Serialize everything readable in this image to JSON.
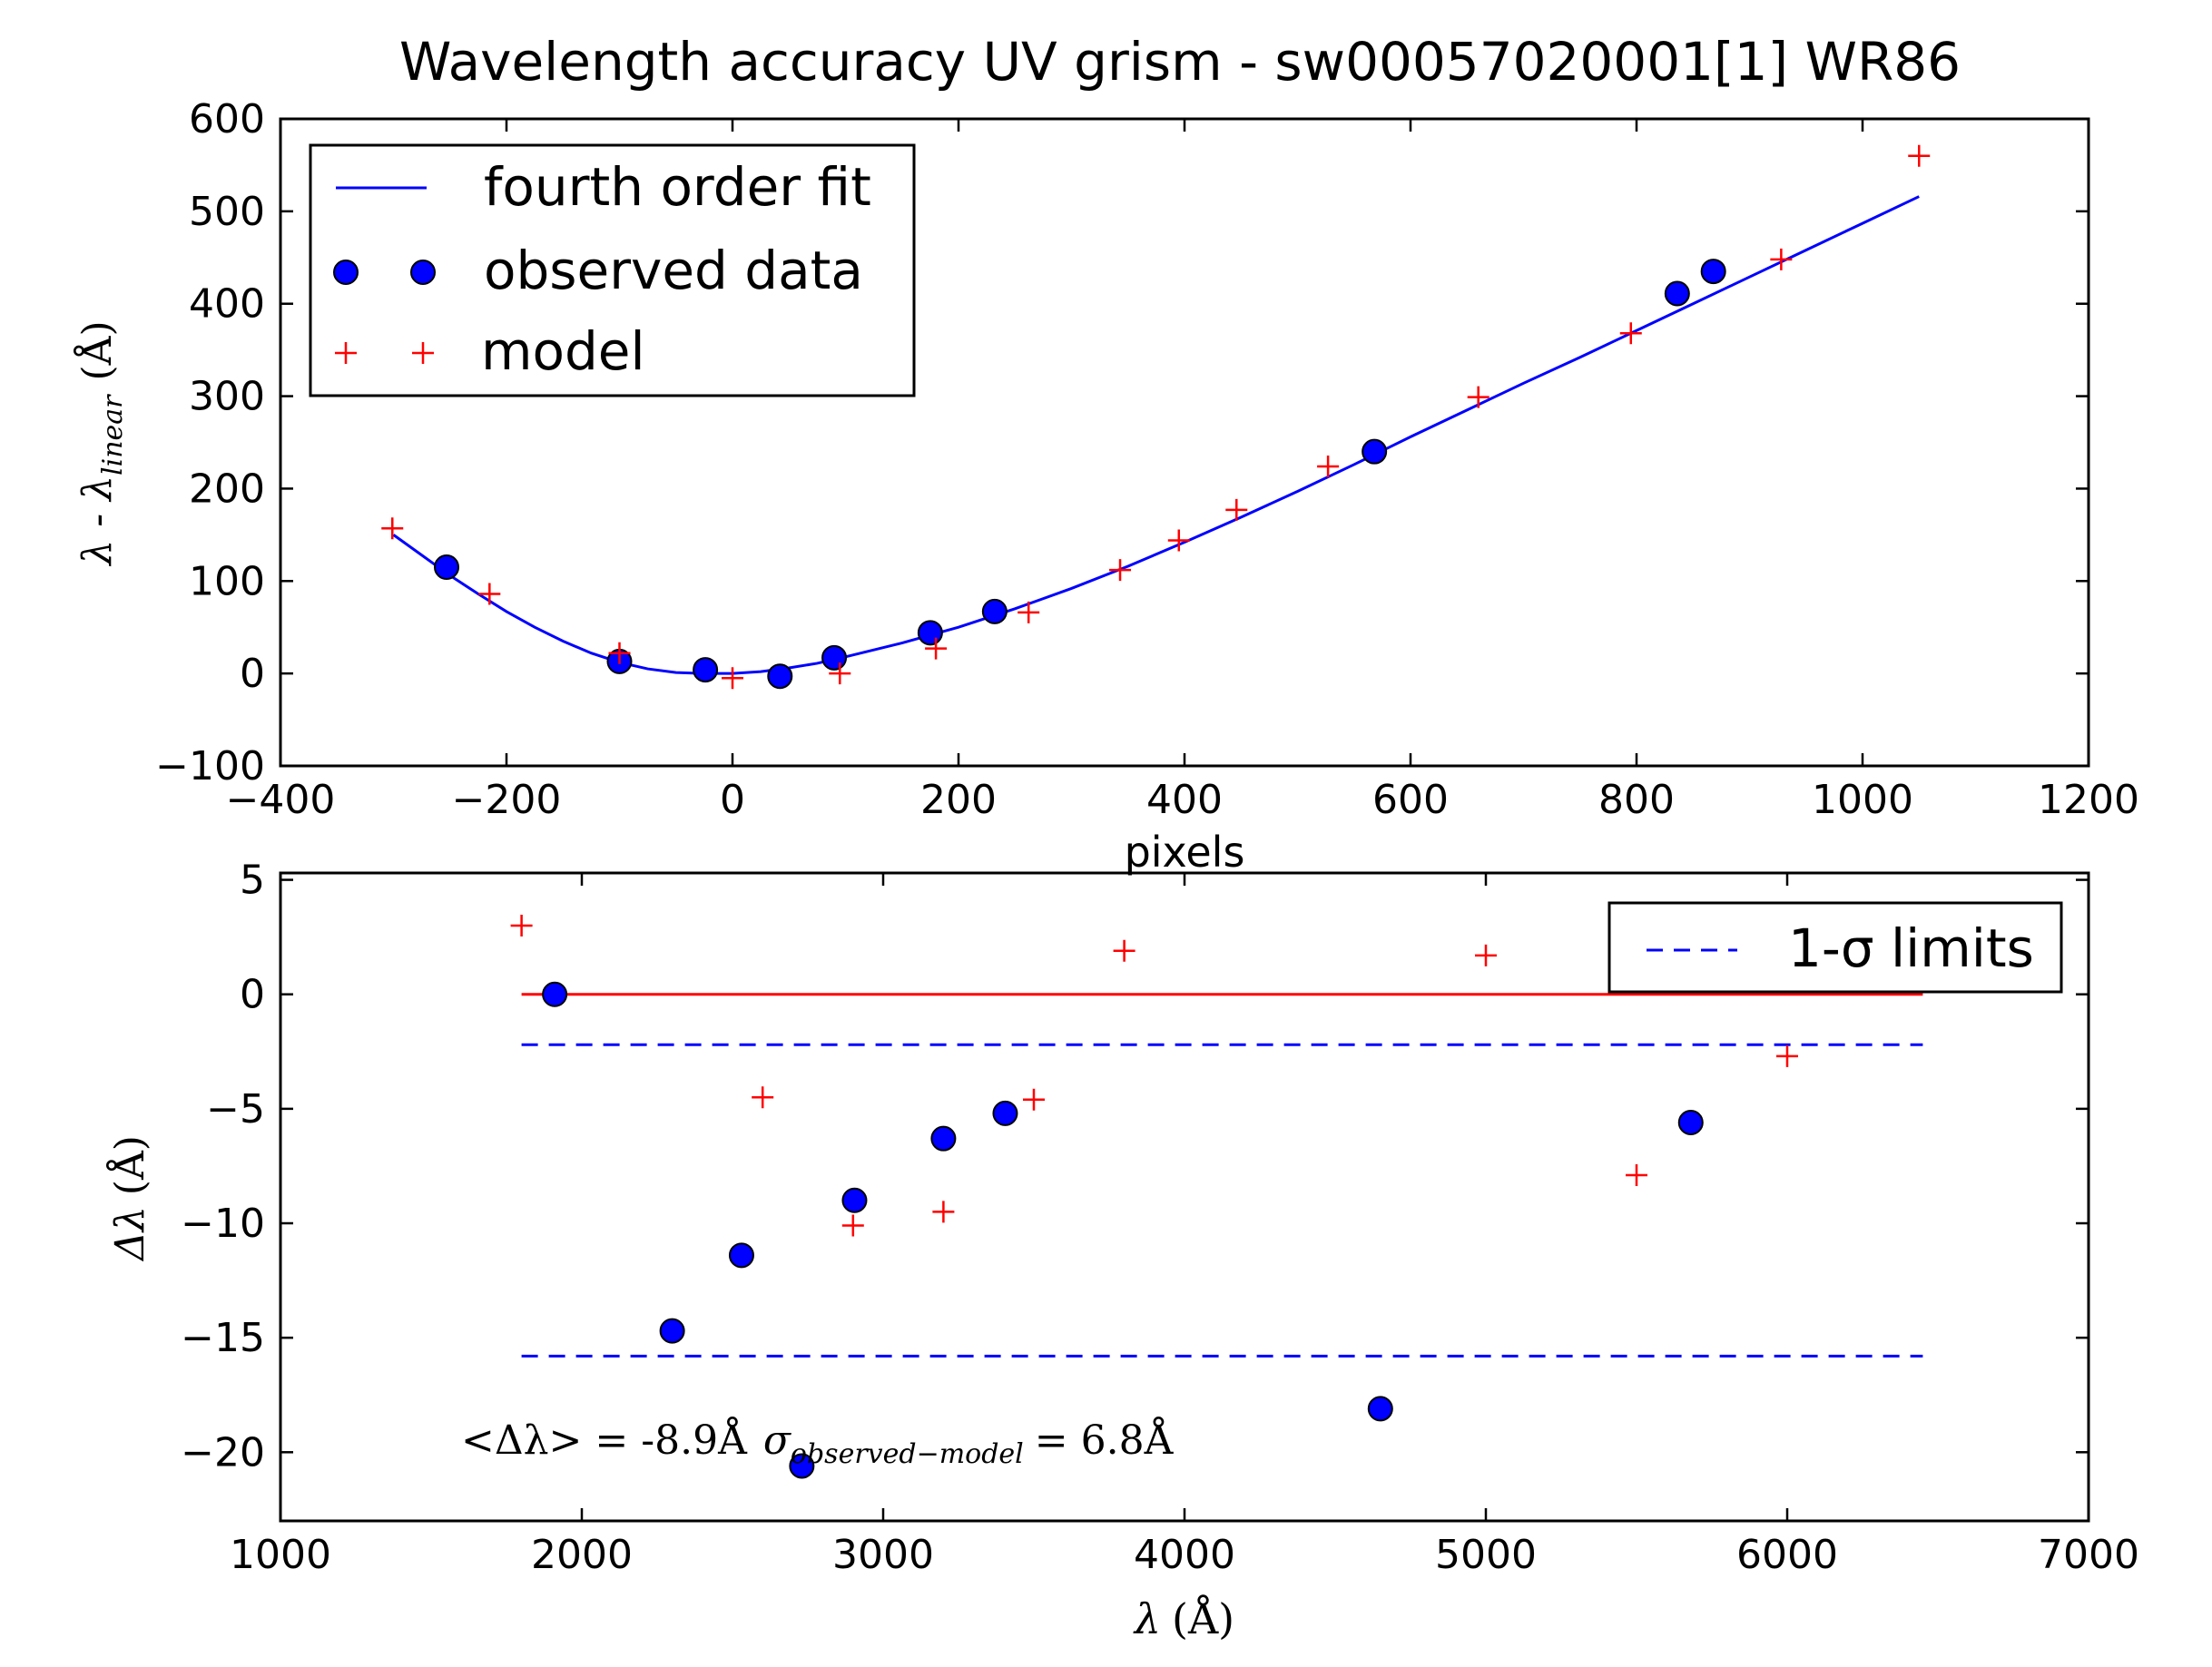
{
  "figure": {
    "title": "Wavelength accuracy UV grism - sw00057020001[1] WR86"
  },
  "chart_data": [
    {
      "type": "scatter",
      "title": "Wavelength accuracy UV grism - sw00057020001[1] WR86",
      "xlabel": "pixels",
      "ylabel_parts": {
        "base": "λ - λ",
        "sub": "linear",
        "unit": "(Å)"
      },
      "xlim": [
        -400,
        1200
      ],
      "ylim": [
        -100,
        600
      ],
      "xticks": [
        -400,
        -200,
        0,
        200,
        400,
        600,
        800,
        1000,
        1200
      ],
      "yticks": [
        -100,
        0,
        100,
        200,
        300,
        400,
        500,
        600
      ],
      "xtick_labels": [
        "−400",
        "−200",
        "0",
        "200",
        "400",
        "600",
        "800",
        "1000",
        "1200"
      ],
      "ytick_labels": [
        "−100",
        "0",
        "100",
        "200",
        "300",
        "400",
        "500",
        "600"
      ],
      "grid": false,
      "legend_position": "top-left",
      "series": [
        {
          "name": "fourth order fit",
          "kind": "line",
          "color": "#0000ff",
          "x": [
            -300,
            -275,
            -250,
            -225,
            -200,
            -175,
            -150,
            -125,
            -100,
            -75,
            -50,
            -25,
            0,
            25,
            50,
            75,
            100,
            150,
            200,
            250,
            300,
            350,
            400,
            450,
            500,
            550,
            600,
            650,
            700,
            750,
            800,
            850,
            900,
            950,
            1000,
            1050
          ],
          "y": [
            150,
            128,
            106,
            86,
            67,
            50,
            35,
            22,
            12,
            5,
            1,
            0,
            0,
            2,
            6,
            11,
            18,
            33,
            50,
            70,
            92,
            116,
            142,
            169,
            197,
            226,
            256,
            285,
            314,
            342,
            371,
            400,
            429,
            458,
            487,
            516
          ]
        },
        {
          "name": "observed data",
          "kind": "marker-circle",
          "color": "#0000ff",
          "x": [
            -253,
            -100,
            -24,
            42,
            90,
            175,
            232,
            568,
            836,
            868
          ],
          "y": [
            115,
            13,
            4,
            -3,
            17,
            44,
            67,
            240,
            411,
            435
          ]
        },
        {
          "name": "model",
          "kind": "marker-plus",
          "color": "#ff0000",
          "x": [
            -301,
            -215,
            -100,
            0,
            95,
            180,
            262,
            343,
            395,
            446,
            527,
            660,
            795,
            928,
            1050
          ],
          "y": [
            157,
            86,
            22,
            -5,
            0,
            27,
            66,
            112,
            144,
            177,
            224,
            299,
            368,
            448,
            560
          ]
        }
      ]
    },
    {
      "type": "scatter",
      "xlabel_parts": {
        "base": "λ",
        "unit": "(Å)"
      },
      "ylabel_parts": {
        "base": "Δλ",
        "unit": "(Å)"
      },
      "xlim": [
        1000,
        7000
      ],
      "ylim": [
        -23,
        5.3
      ],
      "xticks": [
        1000,
        2000,
        3000,
        4000,
        5000,
        6000,
        7000
      ],
      "yticks": [
        -20,
        -15,
        -10,
        -5,
        0,
        5
      ],
      "xtick_labels": [
        "1000",
        "2000",
        "3000",
        "4000",
        "5000",
        "6000",
        "7000"
      ],
      "ytick_labels": [
        "−20",
        "−15",
        "−10",
        "−5",
        "0",
        "5"
      ],
      "grid": false,
      "legend_position": "top-right",
      "annotation": {
        "left": "<Δλ> = -8.9Å",
        "sigma": "σ",
        "sigma_sub": "observed−model",
        "right": "= 6.8Å"
      },
      "series": [
        {
          "kind": "hline-solid",
          "color": "#ff0000",
          "x": [
            1800,
            6450
          ],
          "y": 0
        },
        {
          "name": "1-σ limits",
          "kind": "hline-dashed",
          "color": "#0000ff",
          "x": [
            1800,
            6450
          ],
          "y": -2.2
        },
        {
          "kind": "hline-dashed",
          "color": "#0000ff",
          "x": [
            1800,
            6450
          ],
          "y": -15.8
        },
        {
          "kind": "marker-circle",
          "color": "#0000ff",
          "x": [
            1910,
            2300,
            2530,
            2730,
            2905,
            3200,
            3405,
            4650,
            5680
          ],
          "y": [
            0,
            -14.7,
            -11.4,
            -20.6,
            -9.0,
            -6.3,
            -5.2,
            -18.1,
            -5.6
          ]
        },
        {
          "kind": "marker-plus",
          "color": "#ff0000",
          "x": [
            1800,
            2600,
            2900,
            3200,
            3500,
            3800,
            5000,
            5500,
            6000
          ],
          "y": [
            3.0,
            -4.5,
            -10.1,
            -9.5,
            -4.6,
            1.9,
            1.7,
            -7.9,
            -2.7
          ]
        }
      ]
    }
  ]
}
